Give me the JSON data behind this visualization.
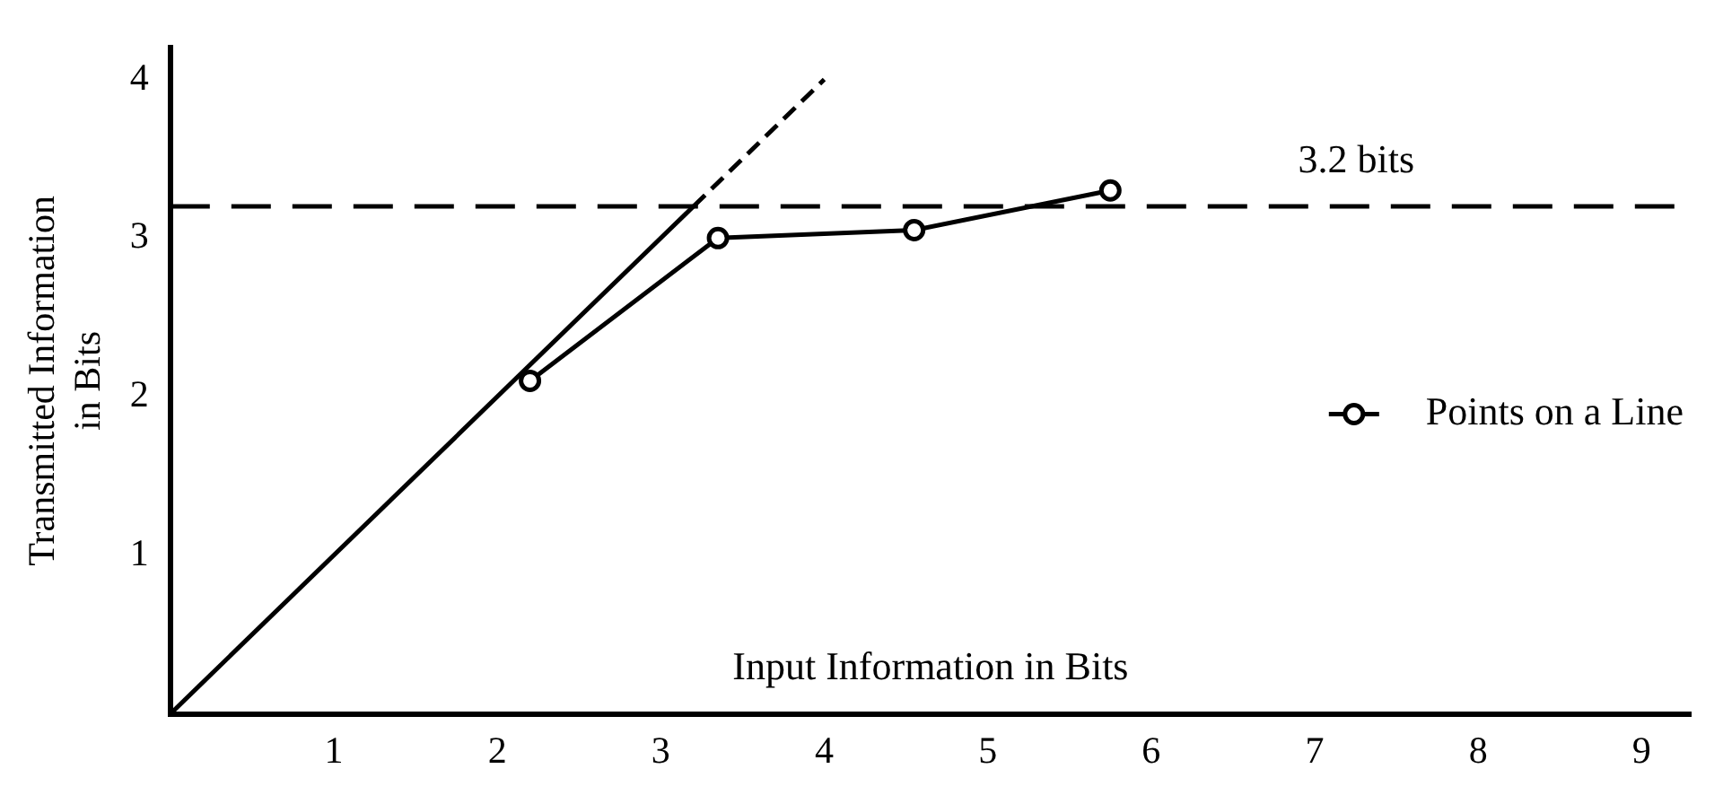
{
  "chart_data": {
    "type": "line",
    "xlabel": "Input Information in Bits",
    "ylabel": "Transmitted Information in Bits",
    "xlim": [
      0,
      9.3
    ],
    "ylim": [
      0,
      4.2
    ],
    "xticks": [
      1,
      2,
      3,
      4,
      5,
      6,
      7,
      8,
      9
    ],
    "yticks": [
      1,
      2,
      3,
      4
    ],
    "grid": false,
    "legend": "right",
    "series": [
      {
        "name": "Points on a Line",
        "color": "#000000",
        "marker": "circle",
        "line_style": "solid",
        "x": [
          2.2,
          3.35,
          4.55,
          5.75
        ],
        "values": [
          2.1,
          3.0,
          3.05,
          3.3
        ]
      },
      {
        "color": "#000000",
        "marker": "none",
        "line_style": "solid",
        "x": [
          0,
          3.2
        ],
        "values": [
          0,
          3.2
        ]
      },
      {
        "color": "#000000",
        "marker": "none",
        "line_style": "dashed",
        "x": [
          3.2,
          4
        ],
        "values": [
          3.2,
          4
        ]
      }
    ],
    "ref_lines": [
      {
        "axis": "y",
        "value": 3.2,
        "label": "3.2 bits",
        "line_style": "dashed",
        "color": "#000000"
      }
    ]
  }
}
